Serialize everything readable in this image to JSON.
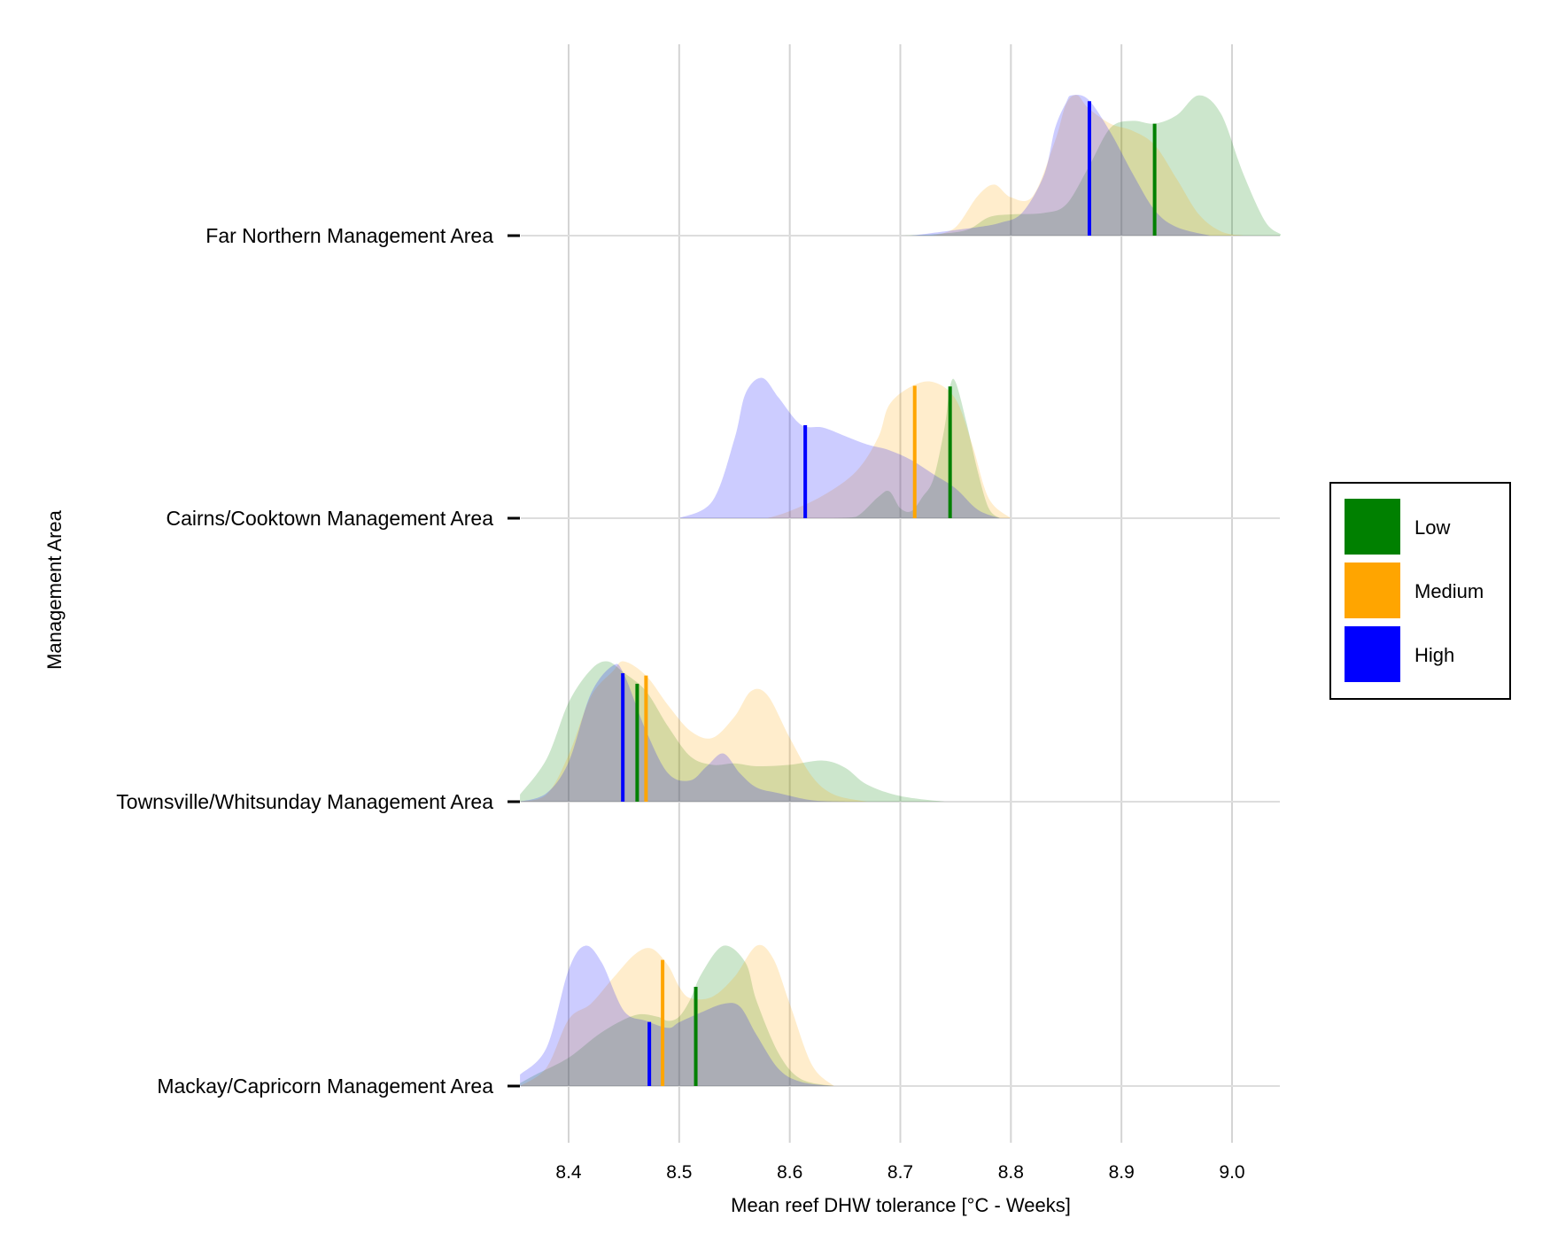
{
  "chart_data": {
    "type": "ridgeline-density",
    "xlabel": "Mean reef DHW tolerance [°C - Weeks]",
    "ylabel": "Management Area",
    "xlim": [
      8.356,
      9.044
    ],
    "x_ticks": [
      "8.4",
      "8.5",
      "8.6",
      "8.7",
      "8.8",
      "8.9",
      "9.0"
    ],
    "grid": "vertical",
    "legend": {
      "placement": "right",
      "entries": [
        {
          "label": "Low",
          "color": "#008000"
        },
        {
          "label": "Medium",
          "color": "#FFA500"
        },
        {
          "label": "High",
          "color": "#0000FF"
        }
      ]
    },
    "categories": [
      "Far Northern Management Area",
      "Cairns/Cooktown Management Area",
      "Townsville/Whitsunday Management Area",
      "Mackay/Capricorn Management Area"
    ],
    "series": [
      {
        "name": "Low",
        "color": "#008000",
        "means": [
          8.93,
          8.745,
          8.462,
          8.515
        ],
        "densities": [
          [
            [
              8.7,
              0
            ],
            [
              8.73,
              0.01
            ],
            [
              8.76,
              0.04
            ],
            [
              8.78,
              0.13
            ],
            [
              8.8,
              0.15
            ],
            [
              8.83,
              0.16
            ],
            [
              8.85,
              0.22
            ],
            [
              8.87,
              0.48
            ],
            [
              8.89,
              0.76
            ],
            [
              8.91,
              0.81
            ],
            [
              8.93,
              0.79
            ],
            [
              8.95,
              0.85
            ],
            [
              8.97,
              0.99
            ],
            [
              8.99,
              0.86
            ],
            [
              9.01,
              0.44
            ],
            [
              9.03,
              0.1
            ],
            [
              9.044,
              0.01
            ]
          ],
          [
            [
              8.64,
              0
            ],
            [
              8.66,
              0.01
            ],
            [
              8.68,
              0.15
            ],
            [
              8.69,
              0.19
            ],
            [
              8.7,
              0.07
            ],
            [
              8.71,
              0.05
            ],
            [
              8.72,
              0.15
            ],
            [
              8.73,
              0.28
            ],
            [
              8.74,
              0.64
            ],
            [
              8.745,
              0.93
            ],
            [
              8.75,
              0.96
            ],
            [
              8.76,
              0.67
            ],
            [
              8.77,
              0.33
            ],
            [
              8.78,
              0.07
            ],
            [
              8.79,
              0
            ]
          ],
          [
            [
              8.356,
              0.05
            ],
            [
              8.38,
              0.3
            ],
            [
              8.4,
              0.7
            ],
            [
              8.42,
              0.93
            ],
            [
              8.435,
              0.99
            ],
            [
              8.45,
              0.91
            ],
            [
              8.47,
              0.78
            ],
            [
              8.49,
              0.53
            ],
            [
              8.51,
              0.32
            ],
            [
              8.53,
              0.26
            ],
            [
              8.55,
              0.27
            ],
            [
              8.57,
              0.25
            ],
            [
              8.6,
              0.26
            ],
            [
              8.63,
              0.29
            ],
            [
              8.65,
              0.24
            ],
            [
              8.67,
              0.12
            ],
            [
              8.7,
              0.04
            ],
            [
              8.74,
              0
            ]
          ],
          [
            [
              8.356,
              0.02
            ],
            [
              8.37,
              0.08
            ],
            [
              8.4,
              0.2
            ],
            [
              8.43,
              0.38
            ],
            [
              8.46,
              0.5
            ],
            [
              8.48,
              0.49
            ],
            [
              8.49,
              0.46
            ],
            [
              8.5,
              0.49
            ],
            [
              8.51,
              0.61
            ],
            [
              8.52,
              0.79
            ],
            [
              8.54,
              0.99
            ],
            [
              8.56,
              0.87
            ],
            [
              8.57,
              0.6
            ],
            [
              8.59,
              0.23
            ],
            [
              8.61,
              0.05
            ],
            [
              8.64,
              0
            ]
          ]
        ]
      },
      {
        "name": "Medium",
        "color": "#FFA500",
        "means": [
          null,
          8.713,
          8.47,
          8.485
        ],
        "densities": [
          [
            [
              8.73,
              0
            ],
            [
              8.75,
              0.06
            ],
            [
              8.77,
              0.28
            ],
            [
              8.785,
              0.36
            ],
            [
              8.8,
              0.27
            ],
            [
              8.82,
              0.28
            ],
            [
              8.84,
              0.67
            ],
            [
              8.85,
              0.93
            ],
            [
              8.86,
              0.99
            ],
            [
              8.87,
              0.9
            ],
            [
              8.89,
              0.79
            ],
            [
              8.91,
              0.74
            ],
            [
              8.93,
              0.64
            ],
            [
              8.95,
              0.4
            ],
            [
              8.97,
              0.15
            ],
            [
              8.99,
              0.03
            ],
            [
              9.01,
              0
            ]
          ],
          [
            [
              8.58,
              0
            ],
            [
              8.6,
              0.05
            ],
            [
              8.63,
              0.16
            ],
            [
              8.66,
              0.33
            ],
            [
              8.68,
              0.57
            ],
            [
              8.69,
              0.8
            ],
            [
              8.71,
              0.93
            ],
            [
              8.73,
              0.96
            ],
            [
              8.75,
              0.84
            ],
            [
              8.765,
              0.52
            ],
            [
              8.78,
              0.14
            ],
            [
              8.8,
              0
            ]
          ],
          [
            [
              8.356,
              0
            ],
            [
              8.38,
              0.05
            ],
            [
              8.4,
              0.33
            ],
            [
              8.42,
              0.74
            ],
            [
              8.44,
              0.92
            ],
            [
              8.45,
              0.99
            ],
            [
              8.47,
              0.89
            ],
            [
              8.49,
              0.68
            ],
            [
              8.51,
              0.5
            ],
            [
              8.53,
              0.45
            ],
            [
              8.55,
              0.6
            ],
            [
              8.565,
              0.78
            ],
            [
              8.58,
              0.75
            ],
            [
              8.6,
              0.45
            ],
            [
              8.62,
              0.18
            ],
            [
              8.64,
              0.05
            ],
            [
              8.67,
              0
            ]
          ],
          [
            [
              8.356,
              0
            ],
            [
              8.38,
              0.13
            ],
            [
              8.4,
              0.47
            ],
            [
              8.42,
              0.58
            ],
            [
              8.44,
              0.76
            ],
            [
              8.46,
              0.93
            ],
            [
              8.475,
              0.97
            ],
            [
              8.49,
              0.85
            ],
            [
              8.5,
              0.7
            ],
            [
              8.51,
              0.62
            ],
            [
              8.53,
              0.63
            ],
            [
              8.55,
              0.77
            ],
            [
              8.57,
              0.99
            ],
            [
              8.585,
              0.9
            ],
            [
              8.6,
              0.58
            ],
            [
              8.62,
              0.15
            ],
            [
              8.64,
              0
            ]
          ]
        ]
      },
      {
        "name": "High",
        "color": "#0000FF",
        "means": [
          8.871,
          8.614,
          8.449,
          8.473
        ],
        "densities": [
          [
            [
              8.71,
              0
            ],
            [
              8.74,
              0.03
            ],
            [
              8.77,
              0.06
            ],
            [
              8.79,
              0.09
            ],
            [
              8.81,
              0.16
            ],
            [
              8.83,
              0.43
            ],
            [
              8.84,
              0.76
            ],
            [
              8.85,
              0.94
            ],
            [
              8.855,
              0.99
            ],
            [
              8.87,
              0.96
            ],
            [
              8.89,
              0.73
            ],
            [
              8.91,
              0.44
            ],
            [
              8.93,
              0.18
            ],
            [
              8.95,
              0.06
            ],
            [
              8.98,
              0
            ]
          ],
          [
            [
              8.5,
              0
            ],
            [
              8.53,
              0.12
            ],
            [
              8.55,
              0.56
            ],
            [
              8.56,
              0.88
            ],
            [
              8.575,
              0.99
            ],
            [
              8.59,
              0.85
            ],
            [
              8.61,
              0.66
            ],
            [
              8.63,
              0.64
            ],
            [
              8.65,
              0.58
            ],
            [
              8.67,
              0.52
            ],
            [
              8.69,
              0.48
            ],
            [
              8.71,
              0.41
            ],
            [
              8.73,
              0.31
            ],
            [
              8.75,
              0.21
            ],
            [
              8.77,
              0.06
            ],
            [
              8.79,
              0
            ]
          ],
          [
            [
              8.356,
              0
            ],
            [
              8.38,
              0.06
            ],
            [
              8.4,
              0.28
            ],
            [
              8.42,
              0.76
            ],
            [
              8.44,
              0.96
            ],
            [
              8.45,
              0.9
            ],
            [
              8.47,
              0.5
            ],
            [
              8.49,
              0.2
            ],
            [
              8.51,
              0.15
            ],
            [
              8.525,
              0.25
            ],
            [
              8.54,
              0.34
            ],
            [
              8.555,
              0.2
            ],
            [
              8.57,
              0.1
            ],
            [
              8.59,
              0.06
            ],
            [
              8.62,
              0.01
            ],
            [
              8.65,
              0
            ]
          ],
          [
            [
              8.356,
              0.08
            ],
            [
              8.38,
              0.27
            ],
            [
              8.4,
              0.82
            ],
            [
              8.415,
              0.99
            ],
            [
              8.43,
              0.87
            ],
            [
              8.45,
              0.53
            ],
            [
              8.47,
              0.46
            ],
            [
              8.49,
              0.41
            ],
            [
              8.5,
              0.45
            ],
            [
              8.52,
              0.52
            ],
            [
              8.54,
              0.58
            ],
            [
              8.555,
              0.56
            ],
            [
              8.57,
              0.36
            ],
            [
              8.59,
              0.12
            ],
            [
              8.61,
              0.03
            ],
            [
              8.64,
              0
            ]
          ]
        ]
      }
    ]
  }
}
